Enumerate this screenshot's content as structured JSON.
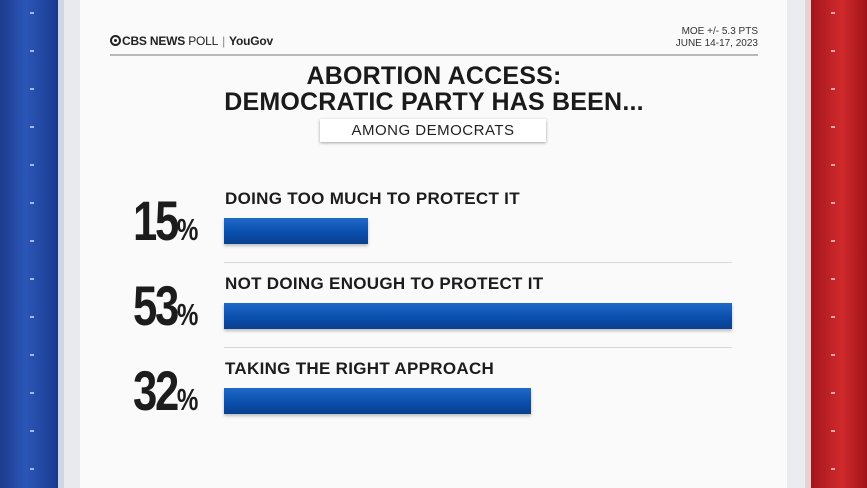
{
  "header": {
    "brand_cbs": "CBS NEWS",
    "brand_poll": "POLL",
    "brand_partner": "YouGov",
    "moe": "MOE +/- 5.3 PTS",
    "dates": "JUNE 14-17, 2023"
  },
  "title_line1": "ABORTION ACCESS:",
  "title_line2": "DEMOCRATIC PARTY HAS BEEN...",
  "subtitle": "AMONG DEMOCRATS",
  "colors": {
    "bar": "#0a4fad",
    "stripe_left": "#1d3c8c",
    "stripe_right": "#c8242b"
  },
  "chart_data": {
    "type": "bar",
    "orientation": "horizontal",
    "categories": [
      "DOING TOO MUCH TO PROTECT IT",
      "NOT DOING ENOUGH TO PROTECT IT",
      "TAKING THE RIGHT APPROACH"
    ],
    "values": [
      15,
      53,
      32
    ],
    "value_labels": [
      "15",
      "53",
      "32"
    ],
    "unit": "%",
    "title": "ABORTION ACCESS: DEMOCRATIC PARTY HAS BEEN...",
    "subtitle": "AMONG DEMOCRATS",
    "xlim": [
      0,
      53
    ],
    "grid": false,
    "legend": "none"
  }
}
